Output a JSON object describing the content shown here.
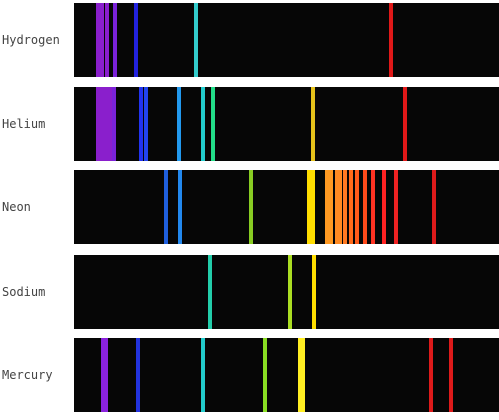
{
  "spectra": [
    {
      "element": "Hydrogen",
      "lines": [
        {
          "nm": 401,
          "color": "#8a1fcc"
        },
        {
          "nm": 404,
          "color": "#8a1fcc"
        },
        {
          "nm": 409,
          "color": "#8a1fcc"
        },
        {
          "nm": 416,
          "color": "#7a22d8"
        },
        {
          "nm": 434,
          "color": "#2222dd"
        },
        {
          "nm": 486,
          "color": "#33cccc"
        },
        {
          "nm": 656,
          "color": "#e01818"
        }
      ]
    },
    {
      "element": "Helium",
      "lines": [
        {
          "nm": 401,
          "color": "#8a1fcc"
        },
        {
          "nm": 404,
          "color": "#8a1fcc"
        },
        {
          "nm": 408,
          "color": "#8a1fcc"
        },
        {
          "nm": 411,
          "color": "#8a1fcc"
        },
        {
          "nm": 415,
          "color": "#7a22d8"
        },
        {
          "nm": 438,
          "color": "#2233ee"
        },
        {
          "nm": 443,
          "color": "#2244ee"
        },
        {
          "nm": 471,
          "color": "#2299ee"
        },
        {
          "nm": 492,
          "color": "#22cccc"
        },
        {
          "nm": 501,
          "color": "#22dd88"
        },
        {
          "nm": 588,
          "color": "#e6c21a"
        },
        {
          "nm": 668,
          "color": "#e01818"
        }
      ]
    },
    {
      "element": "Neon",
      "lines": [
        {
          "nm": 460,
          "color": "#1f5fdd"
        },
        {
          "nm": 472,
          "color": "#2288ee"
        },
        {
          "nm": 534,
          "color": "#88cc22"
        },
        {
          "nm": 585,
          "color": "#ffdd00"
        },
        {
          "nm": 588,
          "color": "#ffdd00"
        },
        {
          "nm": 600,
          "color": "#ff9922"
        },
        {
          "nm": 604,
          "color": "#ff9922"
        },
        {
          "nm": 609,
          "color": "#ff8a22"
        },
        {
          "nm": 612,
          "color": "#ff8a22"
        },
        {
          "nm": 616,
          "color": "#ff7a22"
        },
        {
          "nm": 621,
          "color": "#ff6a1a"
        },
        {
          "nm": 626,
          "color": "#ff5a1a"
        },
        {
          "nm": 633,
          "color": "#ff4a1a"
        },
        {
          "nm": 640,
          "color": "#ff3322"
        },
        {
          "nm": 650,
          "color": "#ff2222"
        },
        {
          "nm": 660,
          "color": "#ee2222"
        },
        {
          "nm": 693,
          "color": "#dd1a1a"
        }
      ]
    },
    {
      "element": "Sodium",
      "lines": [
        {
          "nm": 498,
          "color": "#22ccaa"
        },
        {
          "nm": 568,
          "color": "#aadd22"
        },
        {
          "nm": 589,
          "color": "#ffdd00"
        }
      ]
    },
    {
      "element": "Mercury",
      "lines": [
        {
          "nm": 405,
          "color": "#8a22dd"
        },
        {
          "nm": 408,
          "color": "#8a22dd"
        },
        {
          "nm": 436,
          "color": "#2233dd"
        },
        {
          "nm": 492,
          "color": "#22cccc"
        },
        {
          "nm": 546,
          "color": "#88dd22"
        },
        {
          "nm": 577,
          "color": "#ffee22"
        },
        {
          "nm": 579,
          "color": "#ffee22"
        },
        {
          "nm": 691,
          "color": "#dd1a1a"
        },
        {
          "nm": 708,
          "color": "#dd1a1a"
        }
      ]
    }
  ]
}
